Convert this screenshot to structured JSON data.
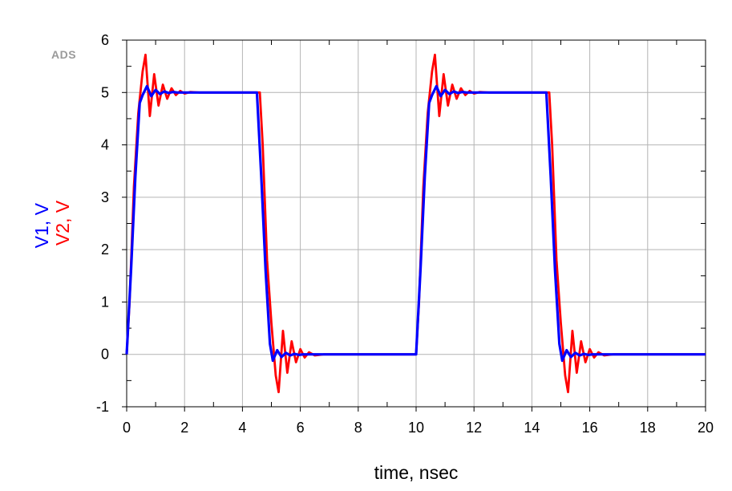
{
  "watermark": "ADS",
  "chart_data": {
    "type": "line",
    "xlabel": "time, nsec",
    "ylabel_parts": [
      {
        "text": "V1, V",
        "color": "#0000ff"
      },
      {
        "text": "V2, V",
        "color": "#ff0000"
      }
    ],
    "xlim": [
      0,
      20
    ],
    "ylim": [
      -1,
      6
    ],
    "x_ticks": [
      0,
      2,
      4,
      6,
      8,
      10,
      12,
      14,
      16,
      18,
      20
    ],
    "y_ticks": [
      -1,
      0,
      1,
      2,
      3,
      4,
      5,
      6
    ],
    "grid": true,
    "series": [
      {
        "name": "V1",
        "color": "#0000ff",
        "x": [
          0,
          0.15,
          0.3,
          0.45,
          0.55,
          0.7,
          0.85,
          1.0,
          1.15,
          1.3,
          1.45,
          1.6,
          1.75,
          2.0,
          2.5,
          3.0,
          4.5,
          4.65,
          4.8,
          4.95,
          5.05,
          5.2,
          5.35,
          5.5,
          5.65,
          5.8,
          5.95,
          6.1,
          6.3,
          7.0,
          10.0,
          10.15,
          10.3,
          10.45,
          10.55,
          10.7,
          10.85,
          11.0,
          11.15,
          11.3,
          11.45,
          11.6,
          11.75,
          12.0,
          12.5,
          13.0,
          14.5,
          14.65,
          14.8,
          14.95,
          15.05,
          15.2,
          15.35,
          15.5,
          15.65,
          15.8,
          15.95,
          16.1,
          16.3,
          17.0,
          20.0
        ],
        "y": [
          0.0,
          1.6,
          3.4,
          4.8,
          4.95,
          5.12,
          4.93,
          5.05,
          4.97,
          5.02,
          4.99,
          5.01,
          5.0,
          5.0,
          5.0,
          5.0,
          5.0,
          3.4,
          1.6,
          0.2,
          -0.12,
          0.08,
          -0.05,
          0.03,
          -0.02,
          0.01,
          -0.01,
          0.0,
          0.0,
          0.0,
          0.0,
          1.6,
          3.4,
          4.8,
          4.95,
          5.12,
          4.93,
          5.05,
          4.97,
          5.02,
          4.99,
          5.01,
          5.0,
          5.0,
          5.0,
          5.0,
          5.0,
          3.4,
          1.6,
          0.2,
          -0.12,
          0.08,
          -0.05,
          0.03,
          -0.02,
          0.01,
          -0.01,
          0.0,
          0.0,
          0.0,
          0.0
        ]
      },
      {
        "name": "V2",
        "color": "#ff0000",
        "x": [
          0,
          0.1,
          0.25,
          0.4,
          0.55,
          0.65,
          0.8,
          0.95,
          1.1,
          1.25,
          1.4,
          1.55,
          1.7,
          1.85,
          2.0,
          2.2,
          2.5,
          3.0,
          4.6,
          4.7,
          4.85,
          5.0,
          5.15,
          5.25,
          5.4,
          5.55,
          5.7,
          5.85,
          6.0,
          6.15,
          6.3,
          6.5,
          6.8,
          7.2,
          10.0,
          10.1,
          10.25,
          10.4,
          10.55,
          10.65,
          10.8,
          10.95,
          11.1,
          11.25,
          11.4,
          11.55,
          11.7,
          11.85,
          12.0,
          12.2,
          12.5,
          13.0,
          14.6,
          14.7,
          14.85,
          15.0,
          15.15,
          15.25,
          15.4,
          15.55,
          15.7,
          15.85,
          16.0,
          16.15,
          16.3,
          16.5,
          16.8,
          17.2,
          20.0
        ],
        "y": [
          0.0,
          1.0,
          3.2,
          4.6,
          5.4,
          5.72,
          4.55,
          5.35,
          4.75,
          5.15,
          4.88,
          5.08,
          4.95,
          5.03,
          4.98,
          5.01,
          5.0,
          5.0,
          5.0,
          4.0,
          1.8,
          0.6,
          -0.4,
          -0.72,
          0.45,
          -0.35,
          0.25,
          -0.15,
          0.1,
          -0.06,
          0.04,
          -0.02,
          0.0,
          0.0,
          0.0,
          1.0,
          3.2,
          4.6,
          5.4,
          5.72,
          4.55,
          5.35,
          4.75,
          5.15,
          4.88,
          5.08,
          4.95,
          5.03,
          4.98,
          5.01,
          5.0,
          5.0,
          5.0,
          4.0,
          1.8,
          0.6,
          -0.4,
          -0.72,
          0.45,
          -0.35,
          0.25,
          -0.15,
          0.1,
          -0.06,
          0.04,
          -0.02,
          0.0,
          0.0,
          0.0
        ]
      }
    ]
  }
}
